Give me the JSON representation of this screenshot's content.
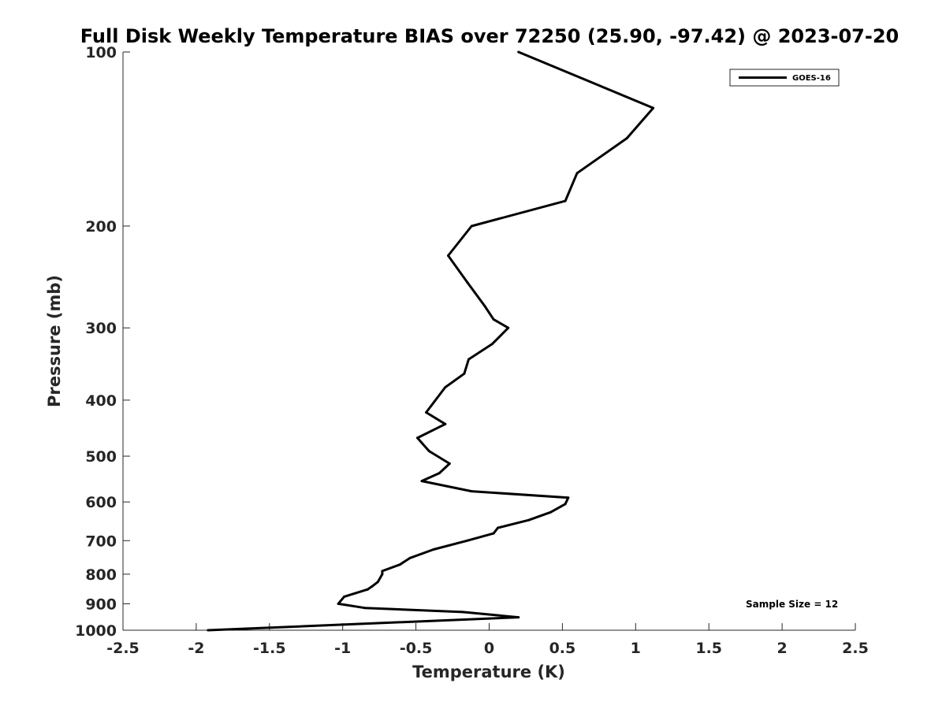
{
  "chart_data": {
    "type": "line",
    "title": "Full Disk Weekly Temperature BIAS over 72250 (25.90, -97.42) @ 2023-07-20",
    "xlabel": "Temperature (K)",
    "ylabel": "Pressure (mb)",
    "xlim": [
      -2.5,
      2.5
    ],
    "ylim": [
      100,
      1000
    ],
    "y_scale": "log",
    "y_reversed": true,
    "grid": false,
    "legend_position": "top-right",
    "x_ticks": [
      "-2.5",
      "-2",
      "-1.5",
      "-1",
      "-0.5",
      "0",
      "0.5",
      "1",
      "1.5",
      "2",
      "2.5"
    ],
    "y_ticks": [
      "100",
      "200",
      "300",
      "400",
      "500",
      "600",
      "700",
      "800",
      "900",
      "1000"
    ],
    "annotation": "Sample Size = 12",
    "series": [
      {
        "name": "GOES-16",
        "color": "#000000",
        "points": [
          {
            "x": 0.2,
            "y": 100
          },
          {
            "x": 1.12,
            "y": 125
          },
          {
            "x": 0.94,
            "y": 141
          },
          {
            "x": 0.6,
            "y": 162
          },
          {
            "x": 0.52,
            "y": 181
          },
          {
            "x": -0.12,
            "y": 200
          },
          {
            "x": -0.28,
            "y": 225
          },
          {
            "x": -0.15,
            "y": 250
          },
          {
            "x": -0.03,
            "y": 275
          },
          {
            "x": 0.03,
            "y": 290
          },
          {
            "x": 0.13,
            "y": 300
          },
          {
            "x": 0.02,
            "y": 320
          },
          {
            "x": -0.14,
            "y": 340
          },
          {
            "x": -0.17,
            "y": 360
          },
          {
            "x": -0.3,
            "y": 380
          },
          {
            "x": -0.43,
            "y": 420
          },
          {
            "x": -0.3,
            "y": 440
          },
          {
            "x": -0.49,
            "y": 465
          },
          {
            "x": -0.41,
            "y": 490
          },
          {
            "x": -0.27,
            "y": 515
          },
          {
            "x": -0.34,
            "y": 535
          },
          {
            "x": -0.46,
            "y": 552
          },
          {
            "x": -0.12,
            "y": 575
          },
          {
            "x": 0.54,
            "y": 590
          },
          {
            "x": 0.52,
            "y": 605
          },
          {
            "x": 0.42,
            "y": 625
          },
          {
            "x": 0.27,
            "y": 645
          },
          {
            "x": 0.06,
            "y": 665
          },
          {
            "x": 0.03,
            "y": 680
          },
          {
            "x": -0.15,
            "y": 700
          },
          {
            "x": -0.38,
            "y": 725
          },
          {
            "x": -0.54,
            "y": 750
          },
          {
            "x": -0.61,
            "y": 770
          },
          {
            "x": -0.73,
            "y": 790
          },
          {
            "x": -0.73,
            "y": 800
          },
          {
            "x": -0.76,
            "y": 825
          },
          {
            "x": -0.8,
            "y": 840
          },
          {
            "x": -0.83,
            "y": 850
          },
          {
            "x": -0.99,
            "y": 875
          },
          {
            "x": -1.03,
            "y": 900
          },
          {
            "x": -0.85,
            "y": 915
          },
          {
            "x": -0.18,
            "y": 930
          },
          {
            "x": 0.2,
            "y": 950
          },
          {
            "x": -1.92,
            "y": 1000
          }
        ]
      }
    ]
  }
}
